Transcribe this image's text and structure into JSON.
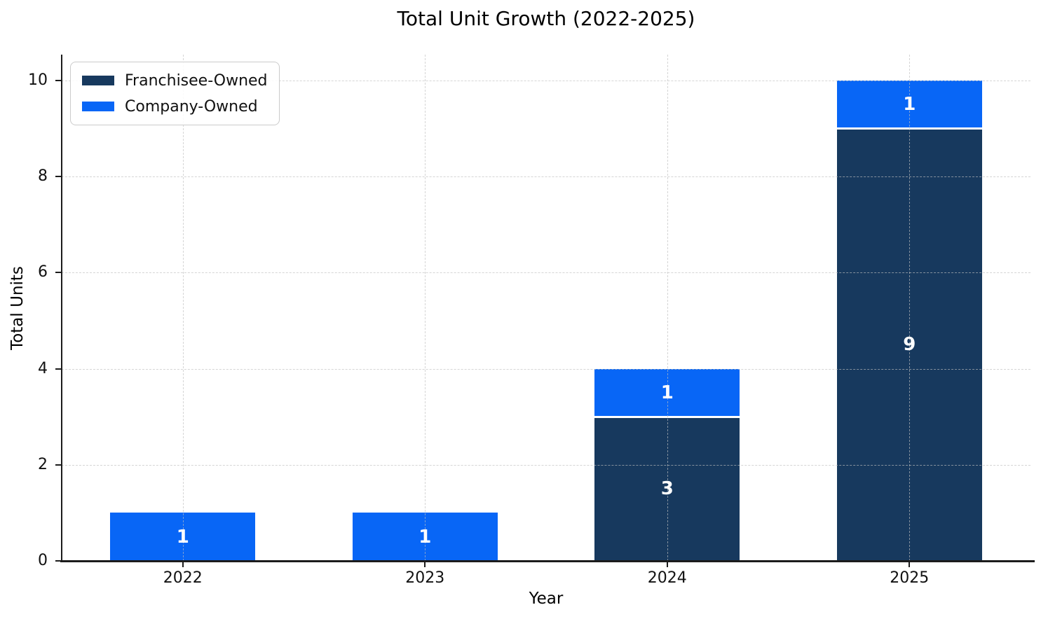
{
  "chart_data": {
    "type": "bar",
    "stacked": true,
    "title": "Total Unit Growth (2022-2025)",
    "xlabel": "Year",
    "ylabel": "Total Units",
    "categories": [
      "2022",
      "2023",
      "2024",
      "2025"
    ],
    "series": [
      {
        "name": "Franchisee-Owned",
        "color": "#17395e",
        "values": [
          0,
          0,
          3,
          9
        ]
      },
      {
        "name": "Company-Owned",
        "color": "#0866f6",
        "values": [
          1,
          1,
          1,
          1
        ]
      }
    ],
    "stack_totals": [
      1,
      1,
      4,
      10
    ],
    "yticks": [
      0,
      2,
      4,
      6,
      8,
      10
    ],
    "ylim": [
      0,
      10.54
    ],
    "grid": "dashed",
    "grid_on_top": true,
    "legend_position": "upper-left",
    "bar_value_labels": true,
    "bar_label_color": "#ffffff",
    "segment_edge_color": "#ffffff"
  }
}
